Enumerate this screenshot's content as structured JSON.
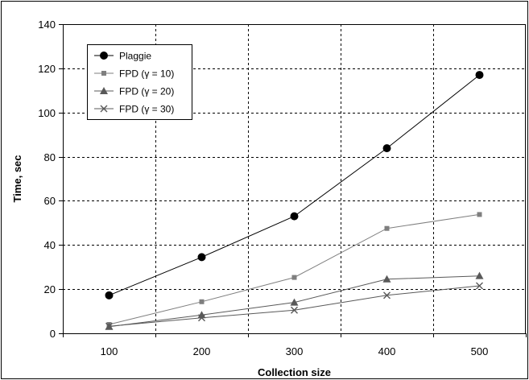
{
  "chart_data": {
    "type": "line",
    "xlabel": "Collection size",
    "ylabel": "Time, sec",
    "categories": [
      "100",
      "200",
      "300",
      "400",
      "500"
    ],
    "x": [
      100,
      200,
      300,
      400,
      500
    ],
    "ylim": [
      0,
      140
    ],
    "yticks": [
      0,
      20,
      40,
      60,
      80,
      100,
      120,
      140
    ],
    "grid": true,
    "legend_position": "top-left",
    "series": [
      {
        "name": "Plaggie",
        "marker": "circle",
        "color": "#000000",
        "values": [
          17.2,
          34.5,
          53.0,
          83.8,
          117.0
        ]
      },
      {
        "name": "FPD (γ = 10)",
        "marker": "square",
        "color": "#7f7f7f",
        "values": [
          4.0,
          14.3,
          25.3,
          47.5,
          53.8
        ]
      },
      {
        "name": "FPD (γ = 20)",
        "marker": "triangle",
        "color": "#595959",
        "values": [
          3.0,
          8.3,
          14.0,
          24.5,
          26.0
        ]
      },
      {
        "name": "FPD (γ = 30)",
        "marker": "x",
        "color": "#595959",
        "values": [
          3.2,
          7.0,
          10.5,
          17.2,
          21.5
        ]
      }
    ]
  }
}
